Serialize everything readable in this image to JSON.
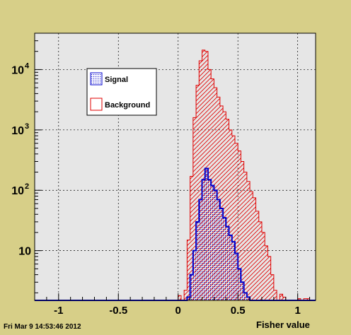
{
  "footer": {
    "timestamp": "Fri Mar  9 14:53:46 2012"
  },
  "colors": {
    "page_bg": "#d7cf88",
    "plot_bg": "#e6e6e6",
    "signal": "#0000cc",
    "background": "#e00000",
    "grid": "#000000"
  },
  "chart_data": {
    "type": "histogram",
    "xlabel": "Fisher value",
    "ylabel": "",
    "xlim": [
      -1.2,
      1.15
    ],
    "ylim": [
      1.5,
      40000
    ],
    "log_y": true,
    "grid": true,
    "legend_position": "top-left",
    "x_ticks": [
      {
        "value": -1,
        "label": "-1"
      },
      {
        "value": -0.5,
        "label": "-0.5"
      },
      {
        "value": 0,
        "label": "0"
      },
      {
        "value": 0.5,
        "label": "0.5"
      },
      {
        "value": 1,
        "label": "1"
      }
    ],
    "y_ticks": [
      {
        "value": 10,
        "base": "10",
        "exp": ""
      },
      {
        "value": 100,
        "base": "10",
        "exp": "2"
      },
      {
        "value": 1000,
        "base": "10",
        "exp": "3"
      },
      {
        "value": 10000,
        "base": "10",
        "exp": "4"
      }
    ],
    "bin_edges_start": -0.1,
    "bin_width": 0.025,
    "series": [
      {
        "name": "Signal",
        "style": "dots",
        "values": [
          0,
          0,
          0,
          0,
          0,
          0,
          0,
          1.7,
          4,
          10,
          30,
          70,
          150,
          230,
          150,
          120,
          100,
          70,
          50,
          35,
          25,
          18,
          14,
          9,
          5,
          3,
          2,
          1.7,
          1.4,
          0,
          0,
          0,
          0,
          0,
          0,
          0,
          0,
          0,
          0,
          0,
          0,
          0,
          0,
          0,
          0,
          0,
          0,
          0,
          0,
          0
        ]
      },
      {
        "name": "Background",
        "style": "hatch",
        "values": [
          0,
          0,
          0,
          0,
          1.8,
          1.4,
          2.2,
          15,
          170,
          1600,
          5500,
          14000,
          21000,
          20000,
          10000,
          7000,
          5000,
          3500,
          2500,
          2000,
          1500,
          1000,
          800,
          600,
          450,
          300,
          200,
          140,
          95,
          75,
          45,
          30,
          20,
          12,
          8,
          4,
          2.2,
          1.4,
          1.9,
          1.7,
          0,
          0,
          0,
          0,
          1.6,
          0,
          1.6,
          1.6,
          0,
          0
        ]
      }
    ]
  }
}
